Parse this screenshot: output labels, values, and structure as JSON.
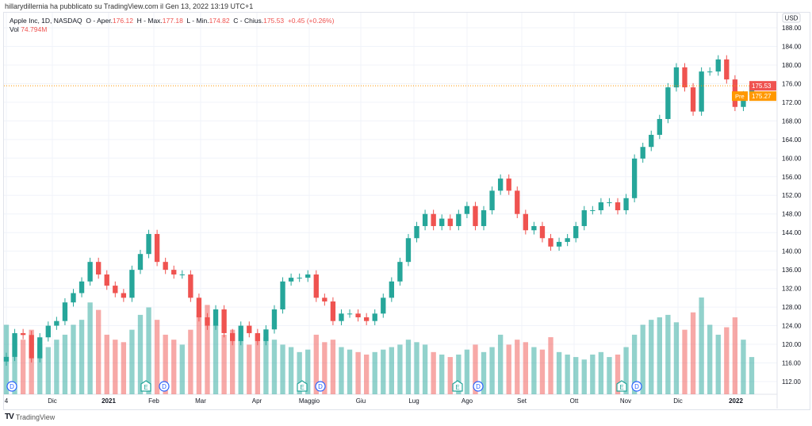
{
  "header": {
    "published": "hillarydillernia ha pubblicato su TradingView.com il Gen 13, 2022 13:19 UTC+1"
  },
  "legend": {
    "symbol": "Apple Inc, 1D, NASDAQ",
    "o_label": "O - Aper.",
    "o": "176.12",
    "h_label": "H - Max.",
    "h": "177.18",
    "l_label": "L - Min.",
    "l": "174.82",
    "c_label": "C - Chius.",
    "c": "175.53",
    "change": "+0.45 (+0.26%)",
    "vol_label": "Vol",
    "vol": "74.794M"
  },
  "footer": {
    "brand": "TradingView",
    "logo": "TV"
  },
  "colors": {
    "up": "#26a69a",
    "down": "#ef5350",
    "last": "#ef5350",
    "pre": "#ff9800",
    "grid": "#f0f3fa"
  },
  "chart_data": {
    "type": "candlestick",
    "title": "Apple Inc, 1D, NASDAQ",
    "currency": "USD",
    "ylim": [
      110,
      189
    ],
    "y_ticks": [
      "112.00",
      "116.00",
      "120.00",
      "124.00",
      "128.00",
      "132.00",
      "136.00",
      "140.00",
      "144.00",
      "148.00",
      "152.00",
      "156.00",
      "160.00",
      "164.00",
      "168.00",
      "172.00",
      "176.00",
      "180.00",
      "184.00",
      "188.00"
    ],
    "x_labels": [
      "4",
      "Dic",
      "2021",
      "Feb",
      "Mar",
      "Apr",
      "Maggio",
      "Giu",
      "Lug",
      "Ago",
      "Set",
      "Ott",
      "Nov",
      "Dic",
      "2022"
    ],
    "closes": [
      117.3,
      122.4,
      122,
      117,
      121.5,
      124,
      125,
      129,
      131,
      133.5,
      137.7,
      135,
      132.6,
      131,
      130,
      136,
      139.4,
      143.7,
      137.7,
      136,
      135,
      135,
      130,
      125.8,
      124,
      127.5,
      122.4,
      120.7,
      124,
      122.4,
      120.7,
      123.2,
      127.5,
      133.5,
      134.3,
      134.3,
      135,
      130,
      129.2,
      125,
      126.6,
      126.6,
      125.8,
      125,
      126.6,
      130,
      133.5,
      137.7,
      142.8,
      145.4,
      148,
      145.4,
      147,
      145.4,
      148,
      149.7,
      145.4,
      148.8,
      153,
      155.6,
      153,
      148,
      144.5,
      145.4,
      142.8,
      141,
      142,
      142.8,
      145.4,
      148.8,
      148.8,
      150.5,
      150.5,
      148.8,
      151.4,
      159.9,
      162.4,
      165,
      168.4,
      175.2,
      179.5,
      175.2,
      170,
      178.6,
      178.6,
      181.2,
      176.9,
      171,
      173.5,
      175.53
    ],
    "volumes_m": [
      140,
      120,
      110,
      130,
      100,
      95,
      110,
      120,
      140,
      150,
      185,
      170,
      120,
      110,
      105,
      130,
      160,
      175,
      150,
      120,
      110,
      100,
      130,
      160,
      180,
      140,
      120,
      130,
      110,
      100,
      120,
      115,
      110,
      100,
      95,
      85,
      90,
      120,
      105,
      110,
      95,
      90,
      85,
      80,
      85,
      90,
      95,
      100,
      110,
      105,
      100,
      85,
      80,
      75,
      80,
      90,
      100,
      85,
      95,
      120,
      100,
      110,
      105,
      95,
      90,
      115,
      85,
      80,
      75,
      70,
      80,
      85,
      75,
      80,
      95,
      120,
      140,
      150,
      155,
      160,
      145,
      130,
      165,
      195,
      140,
      120,
      135,
      155,
      110,
      75
    ],
    "last_price": "175.53",
    "pre_label": "Pre",
    "pre_price": "175.27",
    "markers": [
      {
        "type": "D",
        "label": "D"
      },
      {
        "type": "E",
        "label": "E"
      },
      {
        "type": "D",
        "label": "D"
      },
      {
        "type": "E",
        "label": "E"
      },
      {
        "type": "D",
        "label": "D"
      },
      {
        "type": "E",
        "label": "E"
      },
      {
        "type": "D",
        "label": "D"
      },
      {
        "type": "E",
        "label": "E"
      },
      {
        "type": "D",
        "label": "D"
      }
    ]
  }
}
